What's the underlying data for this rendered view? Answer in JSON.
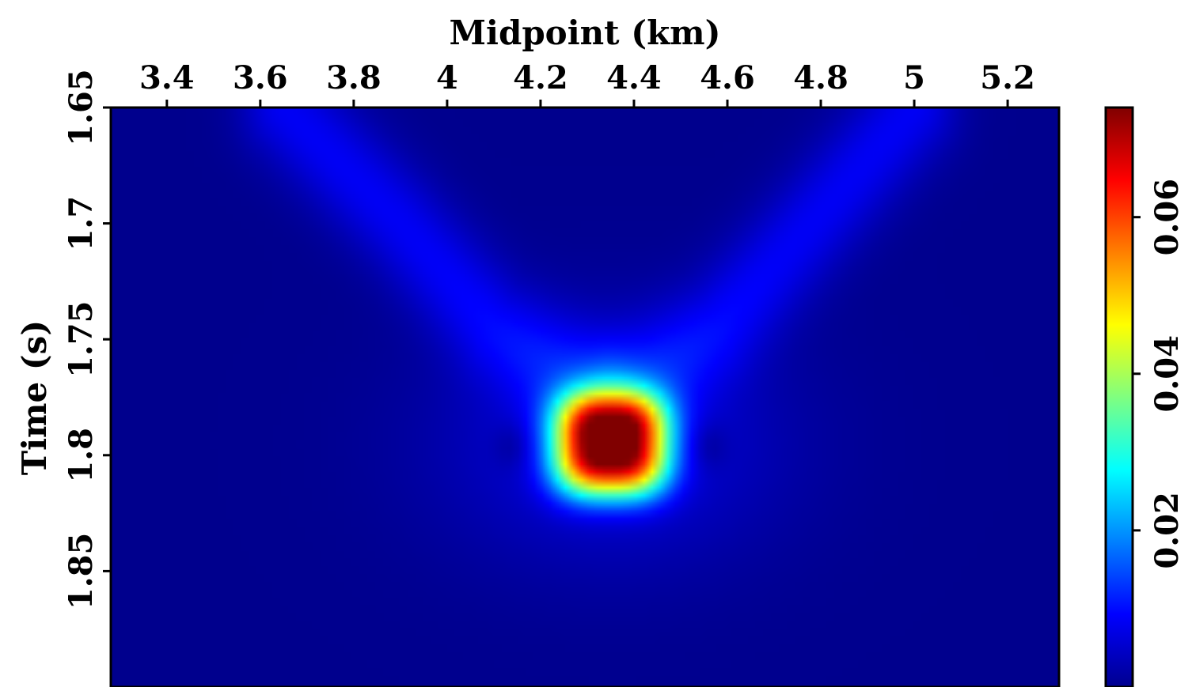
{
  "chart_data": {
    "type": "heatmap",
    "title": "",
    "xlabel": "Midpoint (km)",
    "ylabel": "Time (s)",
    "x_axis_position": "top",
    "xlim": [
      3.28,
      5.31
    ],
    "ylim": [
      1.65,
      1.9
    ],
    "y_inverted": true,
    "xticks": [
      3.4,
      3.6,
      3.8,
      4,
      4.2,
      4.4,
      4.6,
      4.8,
      5,
      5.2
    ],
    "xtick_labels": [
      "3.4",
      "3.6",
      "3.8",
      "4",
      "4.2",
      "4.4",
      "4.6",
      "4.8",
      "5",
      "5.2"
    ],
    "yticks": [
      1.65,
      1.7,
      1.75,
      1.8,
      1.85
    ],
    "ytick_labels": [
      "1.65",
      "1.7",
      "1.75",
      "1.8",
      "1.85"
    ],
    "colormap": "jet",
    "colorbar": {
      "range": [
        0,
        0.074
      ],
      "ticks": [
        0.02,
        0.04,
        0.06
      ],
      "tick_labels": [
        "0.02",
        "0.04",
        "0.06"
      ],
      "placement": "right"
    },
    "features": {
      "peak": {
        "x": 4.35,
        "t": 1.795,
        "value": 0.074
      },
      "background_value": 0.001,
      "left_wing": [
        [
          3.65,
          1.65
        ],
        [
          3.9,
          1.7
        ],
        [
          4.1,
          1.745
        ],
        [
          4.3,
          1.77
        ]
      ],
      "right_wing": [
        [
          5.0,
          1.65
        ],
        [
          4.78,
          1.7
        ],
        [
          4.58,
          1.745
        ],
        [
          4.4,
          1.77
        ]
      ]
    }
  }
}
